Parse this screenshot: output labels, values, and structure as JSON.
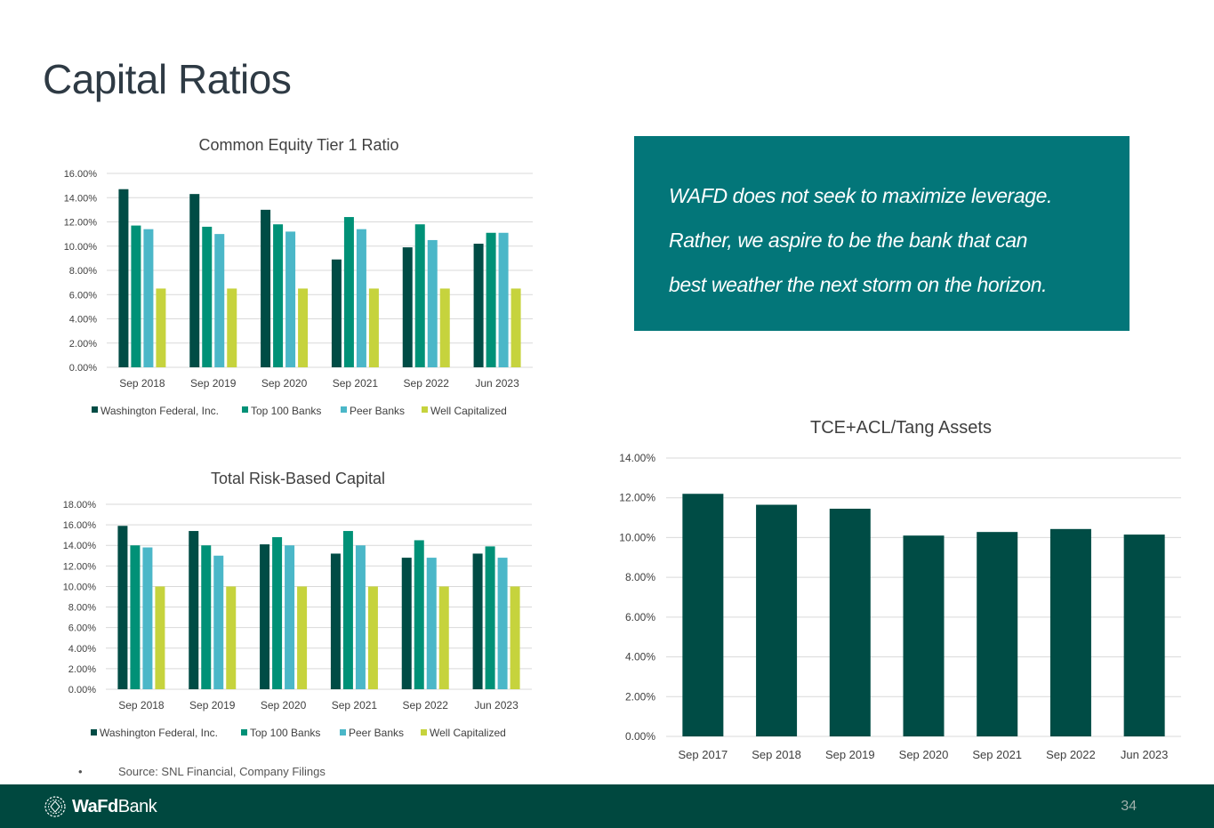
{
  "page": {
    "title": "Capital Ratios",
    "page_number": "34"
  },
  "quote": {
    "lines": [
      "WAFD does not seek to maximize leverage.",
      "Rather, we aspire to be the bank that can",
      "best weather the next storm on the horizon."
    ]
  },
  "source": {
    "bullet": "•",
    "text": "Source: SNL Financial, Company Filings"
  },
  "footer": {
    "logo_bold": "WaFd",
    "logo_regular": "Bank"
  },
  "colors": {
    "washington_federal": "#004C45",
    "top100": "#009177",
    "peer": "#4BB7C8",
    "well_cap": "#C6D33D",
    "tce_bars": "#004C45",
    "quote_bg": "#037679",
    "footer_bg": "#00483F"
  },
  "chart_data": [
    {
      "type": "bar",
      "title": "Common Equity Tier 1 Ratio",
      "categories": [
        "Sep 2018",
        "Sep 2019",
        "Sep 2020",
        "Sep 2021",
        "Sep 2022",
        "Jun 2023"
      ],
      "ylim": [
        0,
        16
      ],
      "yticks": [
        "0.00%",
        "2.00%",
        "4.00%",
        "6.00%",
        "8.00%",
        "10.00%",
        "12.00%",
        "14.00%",
        "16.00%"
      ],
      "legend_position": "bottom",
      "series": [
        {
          "name": "Washington Federal, Inc.",
          "values": [
            14.7,
            14.3,
            13.0,
            8.9,
            9.9,
            10.2
          ]
        },
        {
          "name": "Top 100 Banks",
          "values": [
            11.7,
            11.6,
            11.8,
            12.4,
            11.8,
            11.1
          ]
        },
        {
          "name": "Peer Banks",
          "values": [
            11.4,
            11.0,
            11.2,
            11.4,
            10.5,
            11.1
          ]
        },
        {
          "name": "Well Capitalized",
          "values": [
            6.5,
            6.5,
            6.5,
            6.5,
            6.5,
            6.5
          ]
        }
      ]
    },
    {
      "type": "bar",
      "title": "Total Risk-Based Capital",
      "categories": [
        "Sep 2018",
        "Sep 2019",
        "Sep 2020",
        "Sep 2021",
        "Sep 2022",
        "Jun 2023"
      ],
      "ylim": [
        0,
        18
      ],
      "yticks": [
        "0.00%",
        "2.00%",
        "4.00%",
        "6.00%",
        "8.00%",
        "10.00%",
        "12.00%",
        "14.00%",
        "16.00%",
        "18.00%"
      ],
      "legend_position": "bottom",
      "series": [
        {
          "name": "Washington Federal, Inc.",
          "values": [
            15.9,
            15.4,
            14.1,
            13.2,
            12.8,
            13.2
          ]
        },
        {
          "name": "Top 100 Banks",
          "values": [
            14.0,
            14.0,
            14.8,
            15.4,
            14.5,
            13.9
          ]
        },
        {
          "name": "Peer Banks",
          "values": [
            13.8,
            13.0,
            14.0,
            14.0,
            12.8,
            12.8
          ]
        },
        {
          "name": "Well Capitalized",
          "values": [
            10.0,
            10.0,
            10.0,
            10.0,
            10.0,
            10.0
          ]
        }
      ]
    },
    {
      "type": "bar",
      "title": "TCE+ACL/Tang Assets",
      "categories": [
        "Sep 2017",
        "Sep 2018",
        "Sep 2019",
        "Sep 2020",
        "Sep 2021",
        "Sep 2022",
        "Jun 2023"
      ],
      "ylim": [
        0,
        14
      ],
      "yticks": [
        "0.00%",
        "2.00%",
        "4.00%",
        "6.00%",
        "8.00%",
        "10.00%",
        "12.00%",
        "14.00%"
      ],
      "series": [
        {
          "name": "TCE+ACL/Tang Assets",
          "values": [
            12.2,
            11.65,
            11.45,
            10.1,
            10.28,
            10.43,
            10.15
          ]
        }
      ]
    }
  ]
}
